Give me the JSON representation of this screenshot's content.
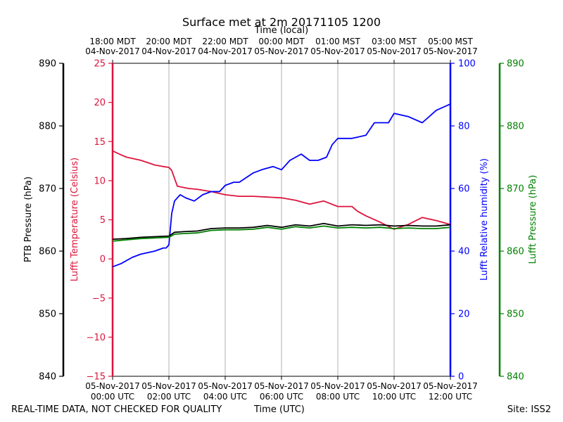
{
  "chart_data": {
    "type": "line",
    "title": "Surface met at 2m 20171105 1200",
    "top_axis_label": "Time (local)",
    "xlabel": "Time (UTC)",
    "top_ticks": [
      {
        "line1": "18:00 MDT",
        "line2": "04-Nov-2017"
      },
      {
        "line1": "20:00 MDT",
        "line2": "04-Nov-2017"
      },
      {
        "line1": "22:00 MDT",
        "line2": "04-Nov-2017"
      },
      {
        "line1": "00:00 MDT",
        "line2": "05-Nov-2017"
      },
      {
        "line1": "01:00 MST",
        "line2": "05-Nov-2017"
      },
      {
        "line1": "03:00 MST",
        "line2": "05-Nov-2017"
      },
      {
        "line1": "05:00 MST",
        "line2": "05-Nov-2017"
      }
    ],
    "bottom_ticks": [
      {
        "line1": "05-Nov-2017",
        "line2": "00:00 UTC"
      },
      {
        "line1": "05-Nov-2017",
        "line2": "02:00 UTC"
      },
      {
        "line1": "05-Nov-2017",
        "line2": "04:00 UTC"
      },
      {
        "line1": "05-Nov-2017",
        "line2": "06:00 UTC"
      },
      {
        "line1": "05-Nov-2017",
        "line2": "08:00 UTC"
      },
      {
        "line1": "05-Nov-2017",
        "line2": "10:00 UTC"
      },
      {
        "line1": "05-Nov-2017",
        "line2": "12:00 UTC"
      }
    ],
    "xlim": [
      0,
      12
    ],
    "axes": {
      "ptb": {
        "label": "PTB Pressure (hPa)",
        "ylim": [
          840,
          890
        ],
        "ticks": [
          840,
          850,
          860,
          870,
          880,
          890
        ],
        "color": "#000000"
      },
      "temp": {
        "label": "Lufft Temperature (Celsius)",
        "ylim": [
          -15,
          25
        ],
        "ticks": [
          "−15",
          "−10",
          "−5",
          "0",
          "5",
          "10",
          "15",
          "20",
          "25"
        ],
        "color": "#dc143c"
      },
      "rh": {
        "label": "Lufft Relative humidity (%)",
        "ylim": [
          0,
          100
        ],
        "ticks": [
          0,
          20,
          40,
          60,
          80,
          100
        ],
        "color": "#0000ff"
      },
      "lp": {
        "label": "Lufft Pressure (hPa)",
        "ylim": [
          840,
          890
        ],
        "ticks": [
          840,
          850,
          860,
          870,
          880,
          890
        ],
        "color": "#008000"
      }
    },
    "series": [
      {
        "name": "Lufft Temperature",
        "axis": "temp",
        "color": "#dc143c",
        "x": [
          0,
          0.3,
          0.5,
          1.0,
          1.5,
          1.8,
          2.0,
          2.1,
          2.3,
          2.7,
          3.0,
          3.5,
          4.0,
          4.5,
          5.0,
          5.5,
          6.0,
          6.5,
          7.0,
          7.5,
          8.0,
          8.5,
          8.7,
          9.0,
          9.5,
          10.0,
          10.5,
          11.0,
          11.5,
          12.0
        ],
        "y": [
          13.8,
          13.3,
          13.0,
          12.6,
          12.0,
          11.8,
          11.7,
          11.3,
          9.3,
          9.0,
          8.9,
          8.6,
          8.2,
          8.0,
          8.0,
          7.9,
          7.8,
          7.5,
          7.0,
          7.4,
          6.7,
          6.7,
          6.1,
          5.5,
          4.7,
          3.8,
          4.4,
          5.3,
          4.9,
          4.4
        ]
      },
      {
        "name": "Lufft Relative humidity",
        "axis": "rh",
        "color": "#0000ff",
        "x": [
          0,
          0.3,
          0.7,
          1.0,
          1.5,
          1.8,
          1.9,
          2.0,
          2.1,
          2.2,
          2.4,
          2.6,
          2.9,
          3.2,
          3.5,
          3.8,
          4.0,
          4.3,
          4.5,
          5.0,
          5.3,
          5.7,
          6.0,
          6.3,
          6.7,
          7.0,
          7.3,
          7.6,
          7.8,
          8.0,
          8.5,
          9.0,
          9.3,
          9.8,
          10.0,
          10.5,
          11.0,
          11.5,
          12.0
        ],
        "y": [
          35,
          36,
          38,
          39,
          40,
          41,
          41,
          42,
          52,
          56,
          58,
          57,
          56,
          58,
          59,
          59,
          61,
          62,
          62,
          65,
          66,
          67,
          66,
          69,
          71,
          69,
          69,
          70,
          74,
          76,
          76,
          77,
          81,
          81,
          84,
          83,
          81,
          85,
          87
        ]
      },
      {
        "name": "PTB Pressure",
        "axis": "ptb",
        "color": "#000000",
        "x": [
          0,
          0.5,
          1.0,
          1.5,
          2.0,
          2.2,
          2.5,
          3.0,
          3.5,
          4.0,
          4.5,
          5.0,
          5.5,
          6.0,
          6.5,
          7.0,
          7.5,
          8.0,
          8.5,
          9.0,
          9.5,
          10.0,
          10.5,
          11.0,
          11.5,
          12.0
        ],
        "y": [
          861.9,
          862.0,
          862.2,
          862.3,
          862.4,
          863.0,
          863.1,
          863.2,
          863.6,
          863.7,
          863.7,
          863.8,
          864.1,
          863.8,
          864.2,
          864.0,
          864.4,
          864.0,
          864.2,
          864.1,
          864.2,
          864.0,
          864.1,
          864.0,
          864.0,
          864.2
        ]
      },
      {
        "name": "Lufft Pressure",
        "axis": "lp",
        "color": "#008000",
        "x": [
          0,
          0.5,
          1.0,
          1.5,
          2.0,
          2.2,
          2.5,
          3.0,
          3.5,
          4.0,
          4.5,
          5.0,
          5.5,
          6.0,
          6.5,
          7.0,
          7.5,
          8.0,
          8.5,
          9.0,
          9.5,
          10.0,
          10.5,
          11.0,
          11.5,
          12.0
        ],
        "y": [
          861.6,
          861.8,
          862.0,
          862.1,
          862.2,
          862.7,
          862.8,
          862.9,
          863.3,
          863.4,
          863.4,
          863.5,
          863.8,
          863.5,
          863.9,
          863.7,
          864.0,
          863.7,
          863.8,
          863.7,
          863.8,
          863.6,
          863.7,
          863.6,
          863.6,
          863.8
        ]
      }
    ]
  },
  "footer": {
    "qc_note": "REAL-TIME DATA, NOT CHECKED FOR QUALITY",
    "xlabel": "Time (UTC)",
    "site": "Site: ISS2"
  }
}
